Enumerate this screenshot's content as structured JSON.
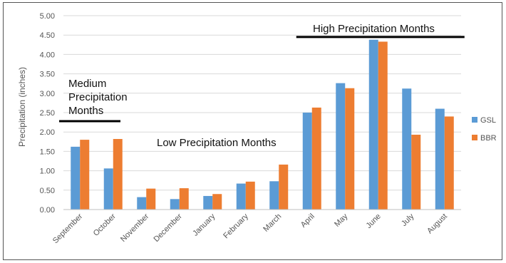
{
  "chart_data": {
    "type": "bar",
    "ylabel": "Precipitation (inches)",
    "ylim": [
      0,
      5
    ],
    "yticks": [
      "0.00",
      "0.50",
      "1.00",
      "1.50",
      "2.00",
      "2.50",
      "3.00",
      "3.50",
      "4.00",
      "4.50",
      "5.00"
    ],
    "categories": [
      "September",
      "October",
      "November",
      "December",
      "January",
      "February",
      "March",
      "April",
      "May",
      "June",
      "July",
      "August"
    ],
    "series": [
      {
        "name": "GSL",
        "color": "#5B9BD5",
        "values": [
          1.62,
          1.06,
          0.32,
          0.27,
          0.35,
          0.67,
          0.73,
          2.5,
          3.26,
          4.38,
          3.12,
          2.6
        ]
      },
      {
        "name": "BBR",
        "color": "#ED7D31",
        "values": [
          1.8,
          1.82,
          0.54,
          0.55,
          0.4,
          0.72,
          1.16,
          2.63,
          3.13,
          4.33,
          1.93,
          2.4
        ]
      }
    ],
    "grid": true,
    "legend_position": "right",
    "annotations": [
      {
        "text_lines": [
          "Medium",
          "Precipitation",
          "Months"
        ],
        "value": 2.28,
        "from": "September",
        "to": "October"
      },
      {
        "text_lines": [
          "Low Precipitation Months"
        ]
      },
      {
        "text_lines": [
          "High Precipitation Months"
        ],
        "value": 4.45,
        "from": "April",
        "to": "August"
      }
    ]
  }
}
